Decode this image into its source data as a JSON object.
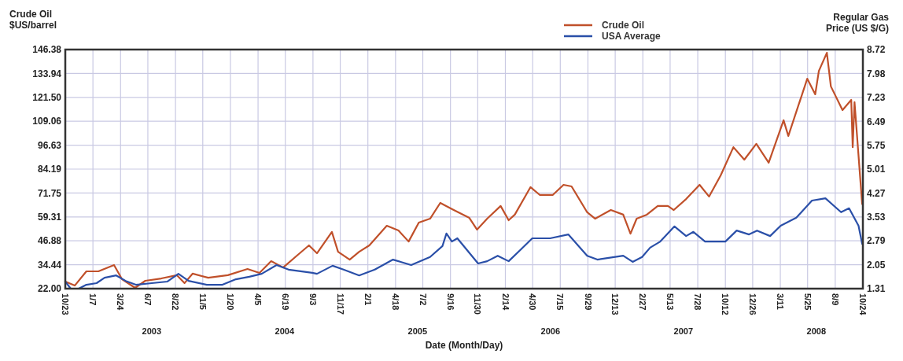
{
  "chart_data": {
    "type": "line",
    "ylabel": "Crude Oil\n$US/barrel",
    "y2label": "Regular Gas\nPrice (US $/G)",
    "xlabel": "Date (Month/Day)",
    "annotations": [
      "2003",
      "2004",
      "2005",
      "2006",
      "2007",
      "2008"
    ],
    "series": [
      {
        "name": "Crude Oil",
        "color": "#c0502a",
        "x": [
          "2002-10-23",
          "2002-11-18",
          "2002-12-20",
          "2003-01-22",
          "2003-03-06",
          "2003-03-28",
          "2003-05-03",
          "2003-05-31",
          "2003-07-14",
          "2003-08-26",
          "2003-09-16",
          "2003-10-08",
          "2003-11-20",
          "2004-01-13",
          "2004-03-07",
          "2004-04-09",
          "2004-05-11",
          "2004-06-13",
          "2004-07-26",
          "2004-08-23",
          "2004-09-14",
          "2004-10-25",
          "2004-11-11",
          "2004-12-13",
          "2005-01-08",
          "2005-02-05",
          "2005-03-25",
          "2005-04-26",
          "2005-05-24",
          "2005-06-21",
          "2005-07-22",
          "2005-08-19",
          "2005-09-25",
          "2005-11-07",
          "2005-11-28",
          "2005-12-26",
          "2006-02-01",
          "2006-02-23",
          "2006-03-12",
          "2006-04-24",
          "2006-05-20",
          "2006-06-24",
          "2006-07-24",
          "2006-08-15",
          "2006-09-27",
          "2006-10-19",
          "2006-12-01",
          "2007-01-04",
          "2007-01-24",
          "2007-02-10",
          "2007-03-10",
          "2007-04-09",
          "2007-05-07",
          "2007-05-23",
          "2007-06-26",
          "2007-08-02",
          "2007-08-28",
          "2007-09-29",
          "2007-11-03",
          "2007-12-03",
          "2008-01-05",
          "2008-02-08",
          "2008-03-20",
          "2008-04-02",
          "2008-05-24",
          "2008-06-15",
          "2008-06-25",
          "2008-07-17",
          "2008-07-28",
          "2008-08-29",
          "2008-09-22",
          "2008-09-26",
          "2008-10-01",
          "2008-10-22"
        ],
        "values": [
          25.7,
          23.6,
          31.0,
          31.0,
          34.3,
          26.9,
          22.4,
          26.1,
          27.3,
          29.0,
          24.9,
          29.8,
          27.7,
          29.0,
          32.2,
          30.2,
          36.3,
          33.0,
          40.0,
          44.5,
          40.4,
          51.5,
          41.2,
          37.1,
          41.2,
          44.5,
          54.7,
          52.3,
          46.5,
          56.4,
          58.4,
          66.6,
          62.9,
          58.8,
          52.7,
          58.4,
          65.0,
          57.6,
          60.5,
          74.8,
          70.7,
          70.7,
          76.0,
          75.2,
          61.7,
          58.4,
          62.9,
          60.5,
          50.6,
          58.4,
          60.5,
          65.0,
          65.0,
          62.9,
          68.6,
          76.0,
          69.9,
          80.9,
          95.6,
          89.1,
          97.3,
          87.5,
          109.6,
          101.4,
          131.2,
          123.1,
          135.3,
          144.7,
          127.2,
          114.9,
          120.2,
          95.6,
          119.0,
          66.0
        ]
      },
      {
        "name": "USA Average",
        "color": "#2a4fa8",
        "axis": "y2",
        "x": [
          "2002-10-23",
          "2002-11-07",
          "2002-11-29",
          "2002-12-20",
          "2003-01-17",
          "2003-02-08",
          "2003-03-12",
          "2003-04-07",
          "2003-05-05",
          "2003-06-18",
          "2003-07-31",
          "2003-08-30",
          "2003-09-27",
          "2003-11-16",
          "2003-12-29",
          "2004-02-04",
          "2004-03-12",
          "2004-04-15",
          "2004-05-26",
          "2004-06-28",
          "2004-09-01",
          "2004-09-14",
          "2004-10-27",
          "2004-11-26",
          "2005-01-08",
          "2005-02-20",
          "2005-04-11",
          "2005-05-31",
          "2005-07-22",
          "2005-08-25",
          "2005-09-05",
          "2005-09-20",
          "2005-10-05",
          "2005-12-01",
          "2005-12-26",
          "2006-01-24",
          "2006-02-23",
          "2006-03-29",
          "2006-04-29",
          "2006-06-17",
          "2006-08-06",
          "2006-09-27",
          "2006-10-25",
          "2007-01-04",
          "2007-01-30",
          "2007-02-25",
          "2007-03-19",
          "2007-04-16",
          "2007-05-25",
          "2007-06-26",
          "2007-07-16",
          "2007-08-17",
          "2007-10-12",
          "2007-11-12",
          "2007-12-16",
          "2008-01-07",
          "2008-02-12",
          "2008-03-12",
          "2008-04-24",
          "2008-06-06",
          "2008-07-13",
          "2008-08-25",
          "2008-09-16",
          "2008-10-12",
          "2008-10-22"
        ],
        "values": [
          1.53,
          1.31,
          1.31,
          1.43,
          1.48,
          1.65,
          1.72,
          1.55,
          1.43,
          1.48,
          1.53,
          1.77,
          1.55,
          1.43,
          1.43,
          1.6,
          1.68,
          1.77,
          2.04,
          1.9,
          1.8,
          1.77,
          2.02,
          1.9,
          1.72,
          1.9,
          2.21,
          2.04,
          2.29,
          2.63,
          3.02,
          2.77,
          2.87,
          2.09,
          2.16,
          2.33,
          2.16,
          2.53,
          2.87,
          2.87,
          2.99,
          2.33,
          2.21,
          2.33,
          2.14,
          2.29,
          2.58,
          2.77,
          3.24,
          2.94,
          3.07,
          2.77,
          2.77,
          3.11,
          2.99,
          3.11,
          2.94,
          3.26,
          3.51,
          4.04,
          4.11,
          3.68,
          3.8,
          3.26,
          2.7
        ]
      }
    ],
    "xlim": [
      "2002-10-23",
      "2008-10-24"
    ],
    "xticks": [
      {
        "value": "2002-10-23",
        "label": "10/23"
      },
      {
        "value": "2003-01-07",
        "label": "1/7"
      },
      {
        "value": "2003-03-24",
        "label": "3/24"
      },
      {
        "value": "2003-06-07",
        "label": "6/7"
      },
      {
        "value": "2003-08-22",
        "label": "8/22"
      },
      {
        "value": "2003-11-05",
        "label": "11/5"
      },
      {
        "value": "2004-01-20",
        "label": "1/20"
      },
      {
        "value": "2004-04-05",
        "label": "4/5"
      },
      {
        "value": "2004-06-19",
        "label": "6/19"
      },
      {
        "value": "2004-09-03",
        "label": "9/3"
      },
      {
        "value": "2004-11-17",
        "label": "11/17"
      },
      {
        "value": "2005-02-01",
        "label": "2/1"
      },
      {
        "value": "2005-04-18",
        "label": "4/18"
      },
      {
        "value": "2005-07-02",
        "label": "7/2"
      },
      {
        "value": "2005-09-16",
        "label": "9/16"
      },
      {
        "value": "2005-11-30",
        "label": "11/30"
      },
      {
        "value": "2006-02-14",
        "label": "2/14"
      },
      {
        "value": "2006-04-30",
        "label": "4/30"
      },
      {
        "value": "2006-07-15",
        "label": "7/15"
      },
      {
        "value": "2006-09-29",
        "label": "9/29"
      },
      {
        "value": "2006-12-13",
        "label": "12/13"
      },
      {
        "value": "2007-02-27",
        "label": "2/27"
      },
      {
        "value": "2007-05-13",
        "label": "5/13"
      },
      {
        "value": "2007-07-28",
        "label": "7/28"
      },
      {
        "value": "2007-10-12",
        "label": "10/12"
      },
      {
        "value": "2007-12-26",
        "label": "12/26"
      },
      {
        "value": "2008-03-11",
        "label": "3/11"
      },
      {
        "value": "2008-05-25",
        "label": "5/25"
      },
      {
        "value": "2008-08-09",
        "label": "8/9"
      },
      {
        "value": "2008-10-24",
        "label": "10/24"
      }
    ],
    "ylim": [
      22,
      146.38
    ],
    "yticks": [
      {
        "value": 22,
        "label": "22.00"
      },
      34.44,
      46.88,
      59.31,
      71.75,
      84.19,
      96.63,
      109.06,
      {
        "value": 121.5,
        "label": "121.50"
      },
      133.94,
      146.38
    ],
    "y2lim": [
      1.31,
      8.72
    ],
    "y2ticks": [
      1.31,
      2.05,
      2.79,
      3.53,
      4.27,
      5.01,
      5.75,
      6.49,
      7.23,
      7.98,
      8.72
    ],
    "grid": true,
    "legend": "top right",
    "marker": "none",
    "line_style": "solid"
  }
}
